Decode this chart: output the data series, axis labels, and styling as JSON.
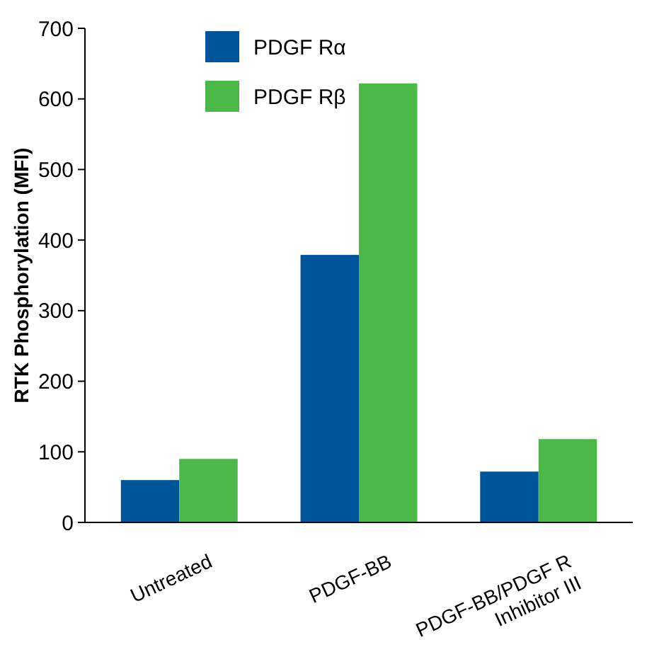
{
  "chart_data": {
    "type": "bar",
    "ylabel": "RTK Phosphorylation (MFI)",
    "categories": [
      "Untreated",
      "PDGF-BB",
      "PDGF-BB/PDGF R Inhibitor III"
    ],
    "series": [
      {
        "name": "PDGF Rα",
        "color": "#00559a",
        "values": [
          60,
          379,
          72
        ]
      },
      {
        "name": "PDGF Rβ",
        "color": "#4cb847",
        "values": [
          90,
          622,
          118
        ]
      }
    ],
    "ylim": [
      0,
      700
    ],
    "yticks": [
      0,
      100,
      200,
      300,
      400,
      500,
      600,
      700
    ],
    "grid": false,
    "legend": "top left"
  }
}
